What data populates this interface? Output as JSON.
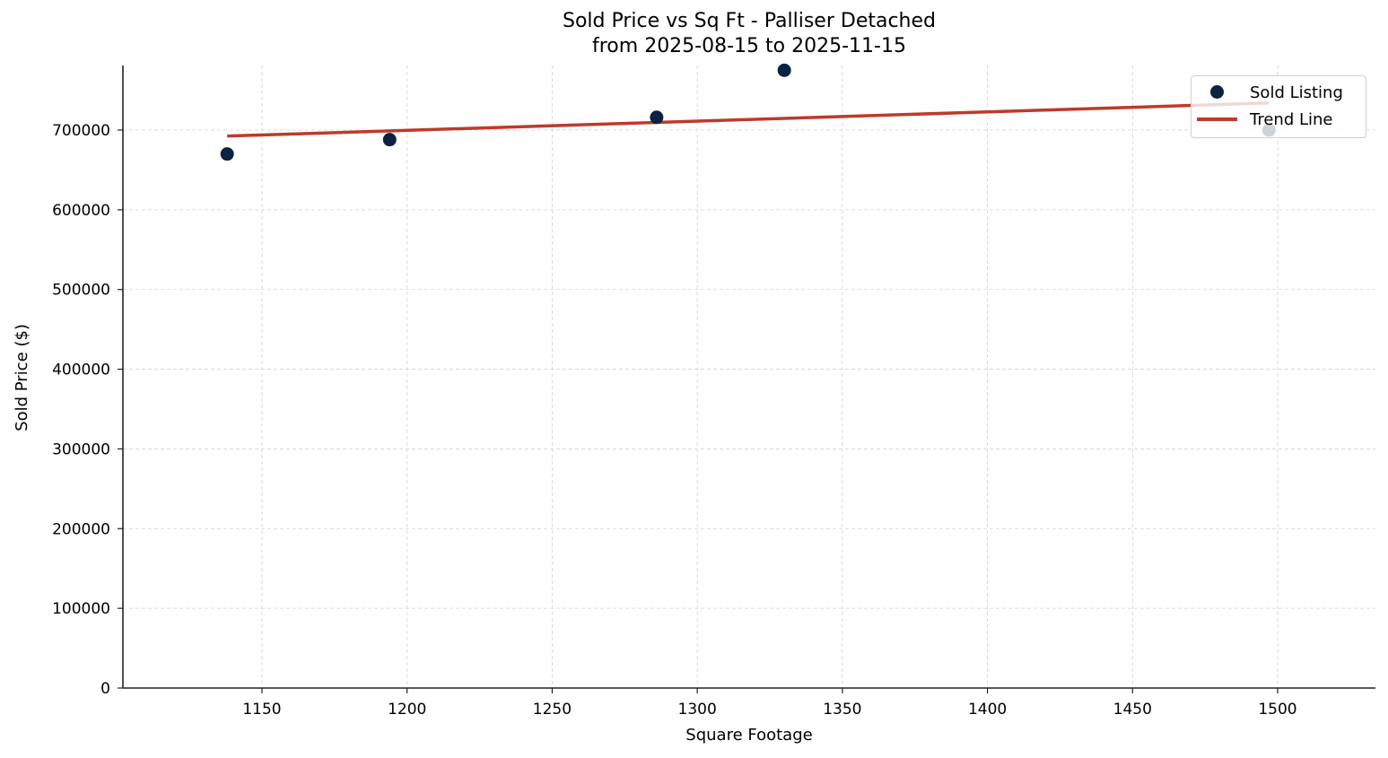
{
  "title_line1": "Sold Price vs Sq Ft - Palliser Detached",
  "title_line2": "from 2025-08-15 to 2025-11-15",
  "xlabel": "Square Footage",
  "ylabel": "Sold Price ($)",
  "legend": {
    "items": [
      {
        "label": "Sold Listing",
        "marker": "circle",
        "color": "#0b2340"
      },
      {
        "label": "Trend Line",
        "marker": "line",
        "color": "#c0392b"
      }
    ]
  },
  "colors": {
    "points": "#0b2340",
    "trend": "#c0392b",
    "grid": "#d3d3d3",
    "axis": "#222222"
  },
  "chart_data": {
    "type": "scatter",
    "title": "Sold Price vs Sq Ft - Palliser Detached\nfrom 2025-08-15 to 2025-11-15",
    "xlabel": "Square Footage",
    "ylabel": "Sold Price ($)",
    "xlim": [
      1103,
      1532
    ],
    "ylim": [
      0,
      780000
    ],
    "x_ticks": [
      1150,
      1200,
      1250,
      1300,
      1350,
      1400,
      1450,
      1500
    ],
    "y_ticks": [
      0,
      100000,
      200000,
      300000,
      400000,
      500000,
      600000,
      700000
    ],
    "grid": true,
    "legend_position": "upper right",
    "series": [
      {
        "name": "Sold Listing",
        "type": "scatter",
        "points": [
          {
            "x": 1138,
            "y": 670000
          },
          {
            "x": 1194,
            "y": 688000
          },
          {
            "x": 1286,
            "y": 716000
          },
          {
            "x": 1330,
            "y": 775000
          },
          {
            "x": 1497,
            "y": 700000
          }
        ]
      },
      {
        "name": "Trend Line",
        "type": "line",
        "points": [
          {
            "x": 1138,
            "y": 692500
          },
          {
            "x": 1497,
            "y": 734000
          }
        ]
      }
    ]
  }
}
